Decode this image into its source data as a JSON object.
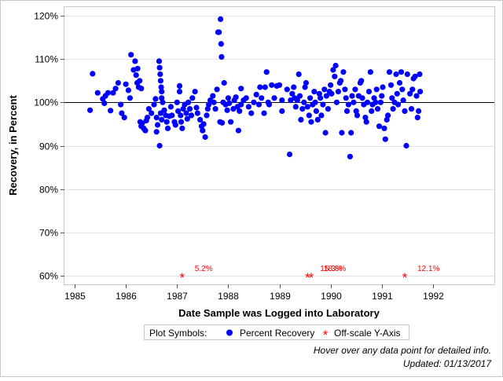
{
  "chart_data": {
    "type": "scatter",
    "xlabel": "Date Sample was Logged into Laboratory",
    "ylabel": "Recovery, in Percent",
    "xlim": [
      1984.8,
      1993.2
    ],
    "ylim": [
      58,
      122
    ],
    "x_ticks": [
      1985,
      1986,
      1987,
      1988,
      1989,
      1990,
      1991,
      1992
    ],
    "y_ticks": [
      60,
      70,
      80,
      90,
      100,
      110,
      120
    ],
    "y_tick_labels": [
      "60%",
      "70%",
      "80%",
      "90%",
      "100%",
      "110%",
      "120%"
    ],
    "reference_line": 100,
    "grid": "horizontal",
    "legend": {
      "title": "Plot Symbols:",
      "items": [
        "Percent Recovery",
        "Off-scale Y-Axis"
      ],
      "placement": "bottom-center"
    },
    "series": [
      {
        "name": "Percent Recovery",
        "color": "#0000ff",
        "marker": "circle",
        "points": [
          [
            1985.35,
            106.6
          ],
          [
            1985.3,
            98.2
          ],
          [
            1985.45,
            102.2
          ],
          [
            1985.55,
            100.8
          ],
          [
            1985.6,
            101.5
          ],
          [
            1985.65,
            102.2
          ],
          [
            1985.58,
            99.8
          ],
          [
            1985.7,
            98.1
          ],
          [
            1985.75,
            102.2
          ],
          [
            1985.8,
            103.2
          ],
          [
            1985.85,
            104.5
          ],
          [
            1985.9,
            99.5
          ],
          [
            1985.92,
            97.5
          ],
          [
            1985.97,
            96.5
          ],
          [
            1986.0,
            104.2
          ],
          [
            1986.05,
            102.8
          ],
          [
            1986.08,
            101.0
          ],
          [
            1986.1,
            111.0
          ],
          [
            1986.15,
            107.5
          ],
          [
            1986.18,
            109.5
          ],
          [
            1986.2,
            106.3
          ],
          [
            1986.22,
            104.5
          ],
          [
            1986.25,
            103.5
          ],
          [
            1986.23,
            107.8
          ],
          [
            1986.27,
            105.0
          ],
          [
            1986.3,
            103.2
          ],
          [
            1986.28,
            95.5
          ],
          [
            1986.3,
            94.5
          ],
          [
            1986.32,
            95.2
          ],
          [
            1986.35,
            94.0
          ],
          [
            1986.38,
            93.5
          ],
          [
            1986.4,
            95.8
          ],
          [
            1986.42,
            96.5
          ],
          [
            1986.45,
            98.5
          ],
          [
            1986.5,
            97.5
          ],
          [
            1986.55,
            99.5
          ],
          [
            1986.58,
            100.8
          ],
          [
            1986.6,
            96.5
          ],
          [
            1986.62,
            94.8
          ],
          [
            1986.6,
            93.2
          ],
          [
            1986.65,
            109.5
          ],
          [
            1986.66,
            108.0
          ],
          [
            1986.67,
            106.5
          ],
          [
            1986.68,
            105.0
          ],
          [
            1986.69,
            103.5
          ],
          [
            1986.7,
            102.5
          ],
          [
            1986.7,
            101.0
          ],
          [
            1986.72,
            100.0
          ],
          [
            1986.68,
            97.5
          ],
          [
            1986.7,
            96.0
          ],
          [
            1986.66,
            90.0
          ],
          [
            1986.75,
            98.2
          ],
          [
            1986.78,
            97.0
          ],
          [
            1986.8,
            95.5
          ],
          [
            1986.82,
            94.0
          ],
          [
            1986.85,
            96.8
          ],
          [
            1986.88,
            99.0
          ],
          [
            1986.9,
            97.0
          ],
          [
            1986.95,
            95.5
          ],
          [
            1986.97,
            94.8
          ],
          [
            1987.0,
            100.0
          ],
          [
            1987.02,
            98.0
          ],
          [
            1987.05,
            103.8
          ],
          [
            1987.05,
            102.5
          ],
          [
            1987.07,
            97.0
          ],
          [
            1987.08,
            95.5
          ],
          [
            1987.1,
            94.0
          ],
          [
            1987.12,
            98.5
          ],
          [
            1987.15,
            99.5
          ],
          [
            1987.18,
            97.5
          ],
          [
            1987.2,
            96.2
          ],
          [
            1987.22,
            100.0
          ],
          [
            1987.25,
            98.5
          ],
          [
            1987.28,
            97.0
          ],
          [
            1987.3,
            101.0
          ],
          [
            1987.35,
            102.5
          ],
          [
            1987.38,
            98.8
          ],
          [
            1987.4,
            97.5
          ],
          [
            1987.45,
            96.0
          ],
          [
            1987.48,
            94.5
          ],
          [
            1987.5,
            93.5
          ],
          [
            1987.52,
            95.0
          ],
          [
            1987.55,
            92.0
          ],
          [
            1987.58,
            97.0
          ],
          [
            1987.6,
            98.5
          ],
          [
            1987.62,
            99.5
          ],
          [
            1987.65,
            100.5
          ],
          [
            1987.7,
            101.5
          ],
          [
            1987.72,
            100.0
          ],
          [
            1987.75,
            98.5
          ],
          [
            1987.78,
            103.0
          ],
          [
            1987.8,
            116.2
          ],
          [
            1987.82,
            116.2
          ],
          [
            1987.85,
            119.2
          ],
          [
            1987.86,
            113.5
          ],
          [
            1987.87,
            110.5
          ],
          [
            1987.84,
            95.5
          ],
          [
            1987.88,
            95.3
          ],
          [
            1987.9,
            100.0
          ],
          [
            1987.92,
            104.5
          ],
          [
            1987.95,
            99.5
          ],
          [
            1987.98,
            98.2
          ],
          [
            1988.0,
            101.0
          ],
          [
            1988.02,
            99.8
          ],
          [
            1988.05,
            95.5
          ],
          [
            1988.1,
            98.5
          ],
          [
            1988.12,
            100.5
          ],
          [
            1988.15,
            101.2
          ],
          [
            1988.18,
            99.0
          ],
          [
            1988.2,
            93.5
          ],
          [
            1988.22,
            98.0
          ],
          [
            1988.25,
            103.2
          ],
          [
            1988.25,
            99.5
          ],
          [
            1988.3,
            100.5
          ],
          [
            1988.35,
            101.0
          ],
          [
            1988.4,
            99.0
          ],
          [
            1988.45,
            97.5
          ],
          [
            1988.5,
            100.0
          ],
          [
            1988.55,
            101.8
          ],
          [
            1988.6,
            99.5
          ],
          [
            1988.62,
            103.5
          ],
          [
            1988.65,
            101.0
          ],
          [
            1988.7,
            97.5
          ],
          [
            1988.72,
            103.5
          ],
          [
            1988.75,
            107.0
          ],
          [
            1988.78,
            100.0
          ],
          [
            1988.8,
            99.5
          ],
          [
            1988.85,
            104.0
          ],
          [
            1988.9,
            101.0
          ],
          [
            1988.95,
            103.8
          ],
          [
            1989.0,
            104.0
          ],
          [
            1989.05,
            98.0
          ],
          [
            1989.05,
            100.5
          ],
          [
            1989.15,
            103.0
          ],
          [
            1989.2,
            88.0
          ],
          [
            1989.22,
            100.5
          ],
          [
            1989.25,
            102.0
          ],
          [
            1989.28,
            103.5
          ],
          [
            1989.3,
            101.0
          ],
          [
            1989.32,
            99.0
          ],
          [
            1989.35,
            100.5
          ],
          [
            1989.38,
            106.5
          ],
          [
            1989.4,
            101.5
          ],
          [
            1989.42,
            96.0
          ],
          [
            1989.45,
            98.5
          ],
          [
            1989.48,
            100.0
          ],
          [
            1989.5,
            103.5
          ],
          [
            1989.52,
            104.5
          ],
          [
            1989.55,
            99.0
          ],
          [
            1989.58,
            97.0
          ],
          [
            1989.6,
            101.0
          ],
          [
            1989.62,
            95.5
          ],
          [
            1989.65,
            99.5
          ],
          [
            1989.68,
            102.5
          ],
          [
            1989.7,
            100.0
          ],
          [
            1989.72,
            98.0
          ],
          [
            1989.75,
            96.0
          ],
          [
            1989.78,
            102.0
          ],
          [
            1989.8,
            101.0
          ],
          [
            1989.82,
            97.0
          ],
          [
            1989.85,
            99.5
          ],
          [
            1989.88,
            103.0
          ],
          [
            1989.9,
            93.0
          ],
          [
            1989.92,
            101.5
          ],
          [
            1989.95,
            98.5
          ],
          [
            1989.98,
            102.5
          ],
          [
            1990.0,
            104.0
          ],
          [
            1990.02,
            102.0
          ],
          [
            1990.05,
            107.5
          ],
          [
            1990.08,
            106.0
          ],
          [
            1990.1,
            108.5
          ],
          [
            1990.12,
            100.0
          ],
          [
            1990.15,
            102.5
          ],
          [
            1990.18,
            104.5
          ],
          [
            1990.2,
            105.0
          ],
          [
            1990.22,
            93.0
          ],
          [
            1990.25,
            107.0
          ],
          [
            1990.28,
            103.0
          ],
          [
            1990.3,
            101.0
          ],
          [
            1990.32,
            98.0
          ],
          [
            1990.35,
            99.5
          ],
          [
            1990.38,
            87.5
          ],
          [
            1990.4,
            93.0
          ],
          [
            1990.42,
            101.5
          ],
          [
            1990.45,
            100.0
          ],
          [
            1990.48,
            103.0
          ],
          [
            1990.5,
            98.0
          ],
          [
            1990.52,
            97.0
          ],
          [
            1990.55,
            101.5
          ],
          [
            1990.58,
            104.5
          ],
          [
            1990.6,
            105.0
          ],
          [
            1990.62,
            101.0
          ],
          [
            1990.65,
            99.5
          ],
          [
            1990.68,
            96.5
          ],
          [
            1990.7,
            95.5
          ],
          [
            1990.72,
            100.0
          ],
          [
            1990.75,
            102.5
          ],
          [
            1990.78,
            107.0
          ],
          [
            1990.8,
            98.0
          ],
          [
            1990.82,
            99.5
          ],
          [
            1990.85,
            101.0
          ],
          [
            1990.88,
            100.0
          ],
          [
            1990.9,
            103.0
          ],
          [
            1990.92,
            98.5
          ],
          [
            1990.95,
            94.5
          ],
          [
            1990.98,
            100.0
          ],
          [
            1991.0,
            101.5
          ],
          [
            1991.02,
            103.5
          ],
          [
            1991.05,
            94.0
          ],
          [
            1991.07,
            91.5
          ],
          [
            1991.1,
            96.0
          ],
          [
            1991.12,
            97.0
          ],
          [
            1991.15,
            107.0
          ],
          [
            1991.18,
            104.0
          ],
          [
            1991.2,
            101.0
          ],
          [
            1991.22,
            98.5
          ],
          [
            1991.25,
            100.0
          ],
          [
            1991.28,
            106.5
          ],
          [
            1991.3,
            102.0
          ],
          [
            1991.32,
            99.5
          ],
          [
            1991.35,
            104.5
          ],
          [
            1991.38,
            107.0
          ],
          [
            1991.4,
            103.0
          ],
          [
            1991.42,
            100.5
          ],
          [
            1991.45,
            98.0
          ],
          [
            1991.48,
            90.0
          ],
          [
            1991.5,
            106.5
          ],
          [
            1991.55,
            102.0
          ],
          [
            1991.58,
            98.5
          ],
          [
            1991.6,
            103.0
          ],
          [
            1991.62,
            105.5
          ],
          [
            1991.65,
            106.0
          ],
          [
            1991.68,
            101.5
          ],
          [
            1991.7,
            96.5
          ],
          [
            1991.72,
            98.0
          ],
          [
            1991.74,
            106.5
          ],
          [
            1991.75,
            102.5
          ]
        ]
      },
      {
        "name": "Off-scale Y-Axis",
        "color": "#ff0000",
        "marker": "asterisk",
        "points": [
          {
            "x": 1987.1,
            "y": 60,
            "label": "5.2%"
          },
          {
            "x": 1989.55,
            "y": 60,
            "label": "15.3%"
          },
          {
            "x": 1989.62,
            "y": 60,
            "label": "18.8%"
          },
          {
            "x": 1991.45,
            "y": 60,
            "label": "12.1%"
          }
        ]
      }
    ]
  },
  "footer": {
    "note": "Hover over any data point for detailed info.",
    "updated": "Updated: 01/13/2017"
  }
}
